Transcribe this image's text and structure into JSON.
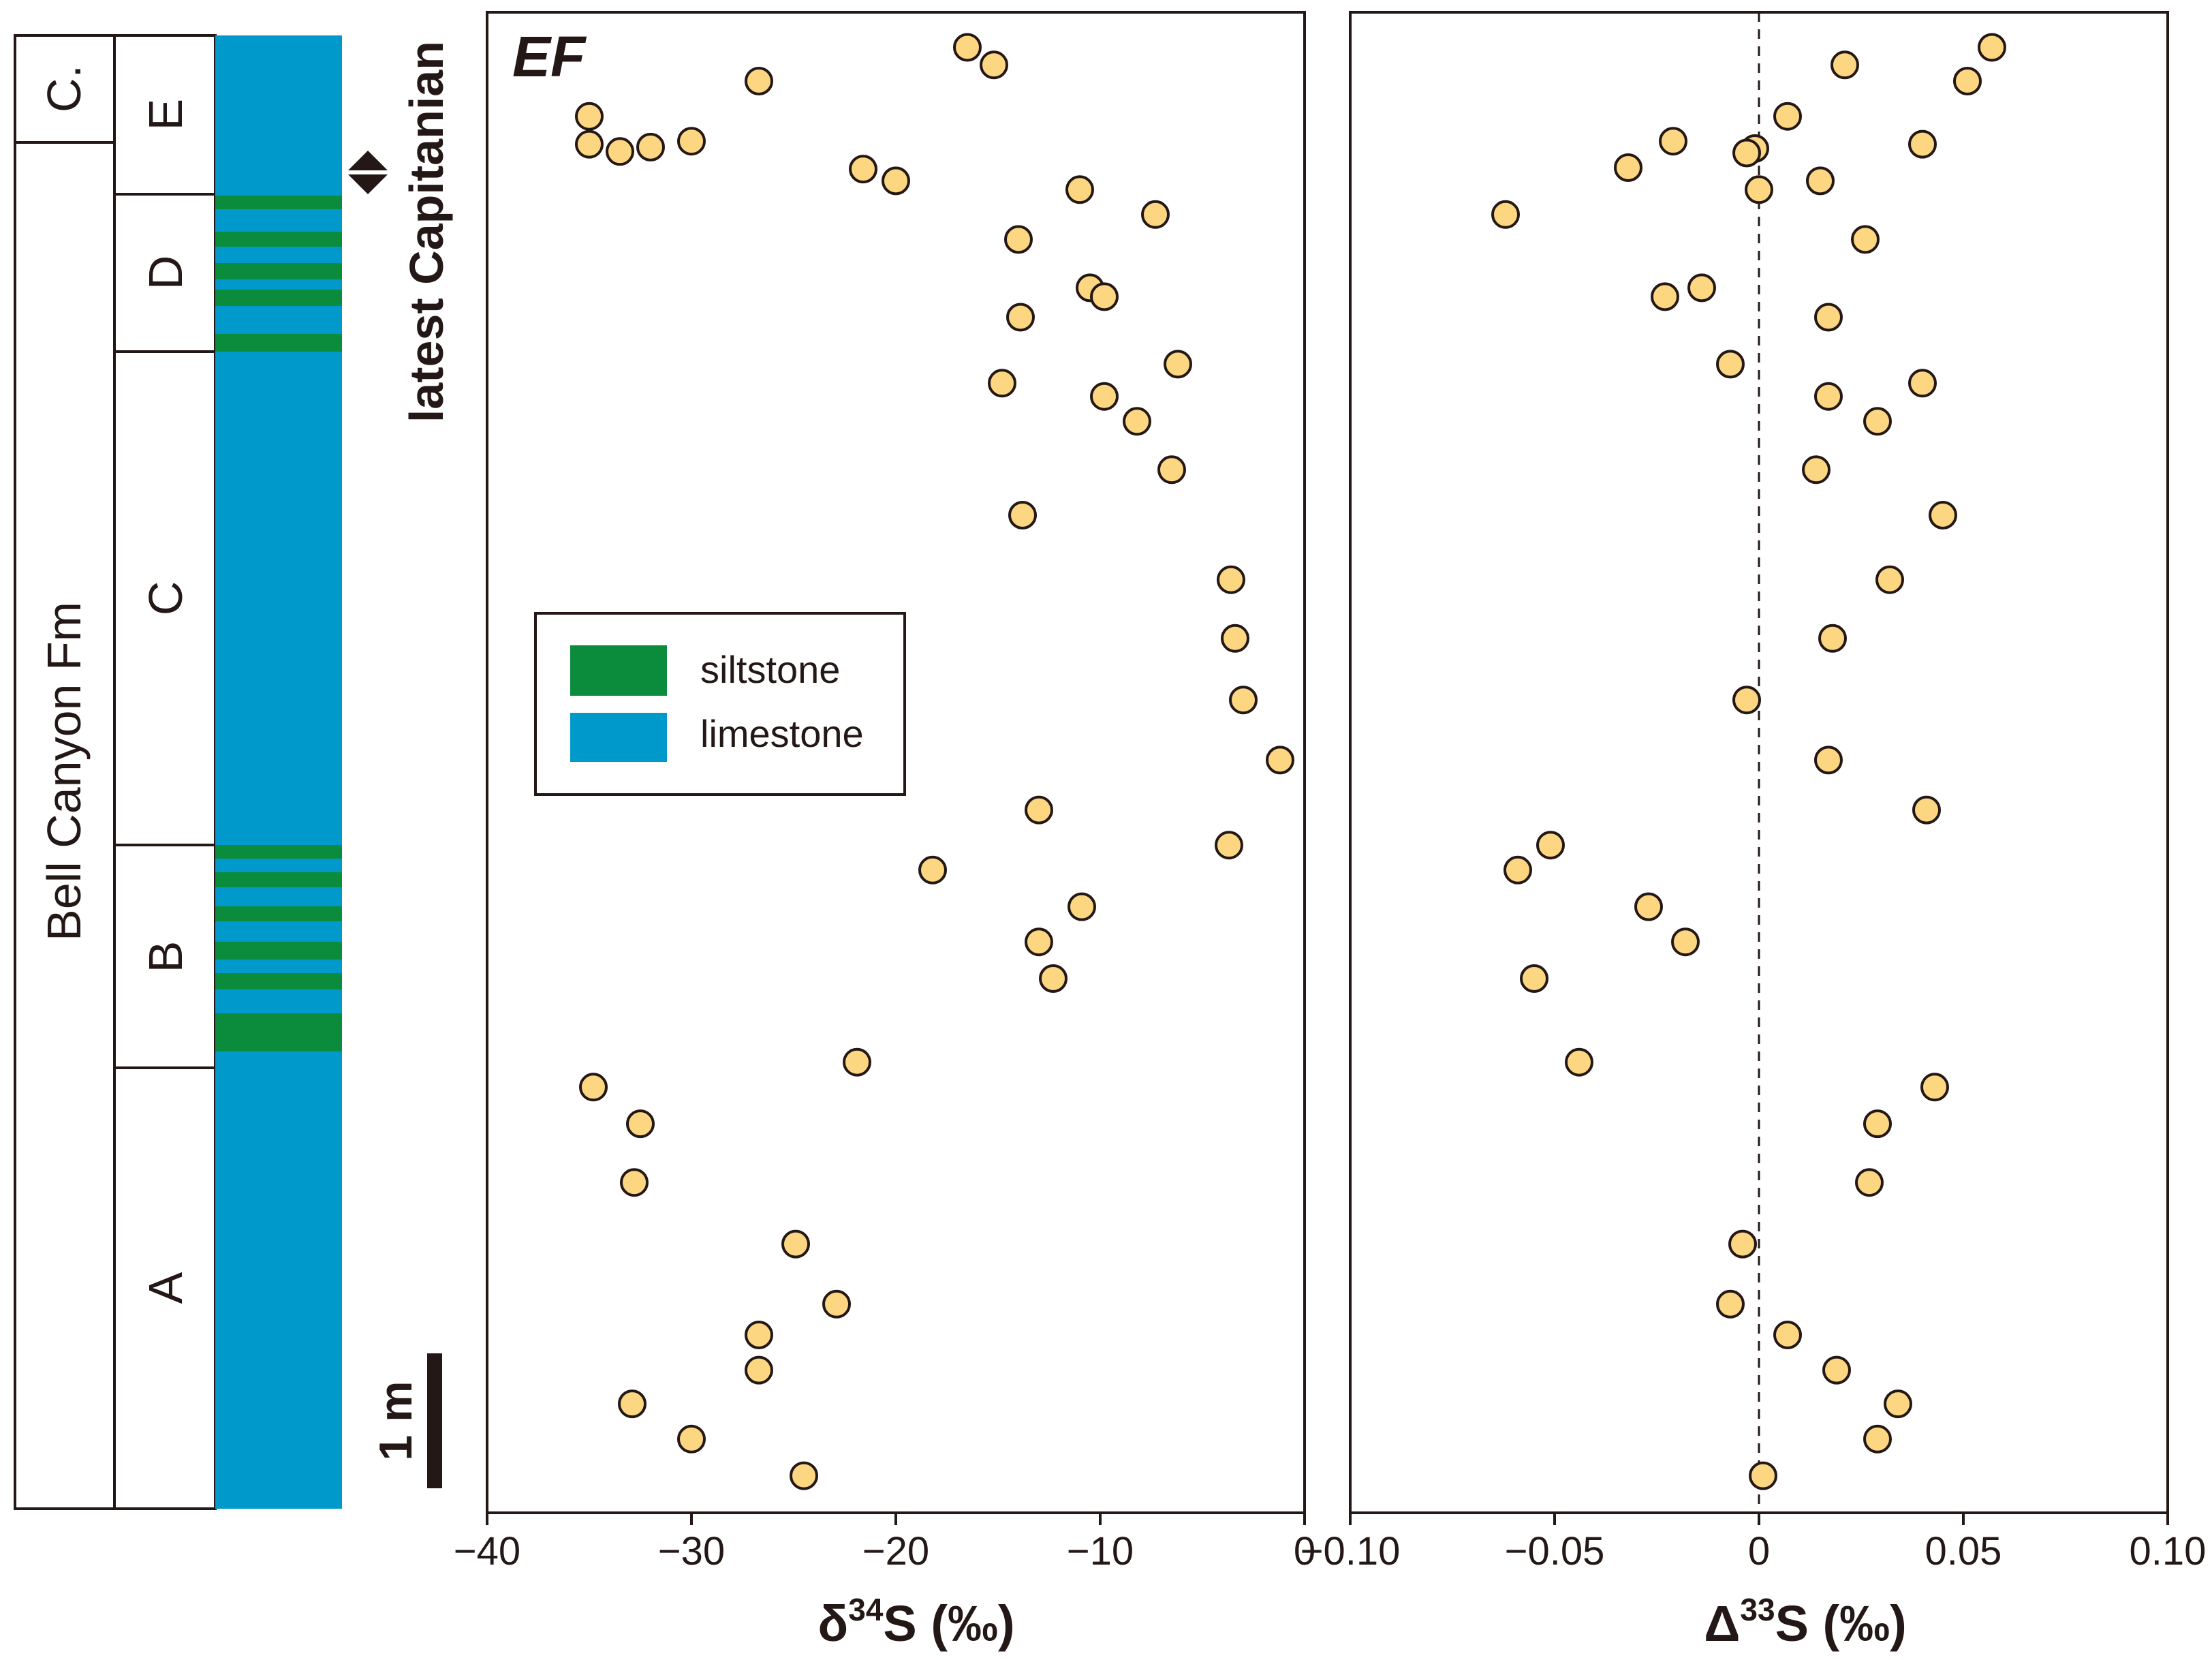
{
  "chart_data": [
    {
      "type": "scatter",
      "panel_tag": "EF",
      "xlabel_parts": {
        "base": "δ",
        "sup": "34",
        "rest": "S (‰)"
      },
      "xlim": [
        -40,
        0
      ],
      "xticks": [
        -40,
        -30,
        -20,
        -10,
        0
      ],
      "xtick_labels": [
        "−40",
        "−30",
        "−20",
        "−10",
        "0"
      ],
      "ylim": [
        0,
        100
      ],
      "points": [
        {
          "x": -16.5,
          "y": 99
        },
        {
          "x": -15.2,
          "y": 97.8
        },
        {
          "x": -26.7,
          "y": 96.7
        },
        {
          "x": -35,
          "y": 94.3
        },
        {
          "x": -35,
          "y": 92.4
        },
        {
          "x": -33.5,
          "y": 91.9
        },
        {
          "x": -32,
          "y": 92.2
        },
        {
          "x": -30,
          "y": 92.6
        },
        {
          "x": -21.6,
          "y": 90.7
        },
        {
          "x": -20,
          "y": 89.9
        },
        {
          "x": -11,
          "y": 89.3
        },
        {
          "x": -7.3,
          "y": 87.6
        },
        {
          "x": -14,
          "y": 85.9
        },
        {
          "x": -10.5,
          "y": 82.6
        },
        {
          "x": -9.8,
          "y": 82
        },
        {
          "x": -13.9,
          "y": 80.6
        },
        {
          "x": -6.2,
          "y": 77.4
        },
        {
          "x": -14.8,
          "y": 76.1
        },
        {
          "x": -9.8,
          "y": 75.2
        },
        {
          "x": -8.2,
          "y": 73.5
        },
        {
          "x": -6.5,
          "y": 70.2
        },
        {
          "x": -13.8,
          "y": 67.1
        },
        {
          "x": -3.6,
          "y": 62.7
        },
        {
          "x": -3.4,
          "y": 58.7
        },
        {
          "x": -3,
          "y": 54.5
        },
        {
          "x": -1.2,
          "y": 50.4
        },
        {
          "x": -13,
          "y": 47
        },
        {
          "x": -3.7,
          "y": 44.6
        },
        {
          "x": -18.2,
          "y": 42.9
        },
        {
          "x": -10.9,
          "y": 40.4
        },
        {
          "x": -13,
          "y": 38
        },
        {
          "x": -12.3,
          "y": 35.5
        },
        {
          "x": -21.9,
          "y": 29.8
        },
        {
          "x": -34.8,
          "y": 28.1
        },
        {
          "x": -32.5,
          "y": 25.6
        },
        {
          "x": -32.8,
          "y": 21.6
        },
        {
          "x": -24.9,
          "y": 17.4
        },
        {
          "x": -22.9,
          "y": 13.3
        },
        {
          "x": -26.7,
          "y": 11.2
        },
        {
          "x": -26.7,
          "y": 8.8
        },
        {
          "x": -32.9,
          "y": 6.5
        },
        {
          "x": -30,
          "y": 4.1
        },
        {
          "x": -24.5,
          "y": 1.6
        }
      ]
    },
    {
      "type": "scatter",
      "xlabel_parts": {
        "base": "Δ",
        "sup": "33",
        "rest": "S (‰)"
      },
      "xlim": [
        -0.1,
        0.1
      ],
      "xticks": [
        -0.1,
        -0.05,
        0,
        0.05,
        0.1
      ],
      "xtick_labels": [
        "−0.10",
        "−0.05",
        "0",
        "0.05",
        "0.10"
      ],
      "ylim": [
        0,
        100
      ],
      "reference_line": {
        "x": 0,
        "style": "dashed"
      },
      "points": [
        {
          "x": 0.057,
          "y": 99
        },
        {
          "x": 0.021,
          "y": 97.8
        },
        {
          "x": 0.051,
          "y": 96.7
        },
        {
          "x": 0.007,
          "y": 94.3
        },
        {
          "x": -0.021,
          "y": 92.6
        },
        {
          "x": 0.04,
          "y": 92.4
        },
        {
          "x": -0.001,
          "y": 92.1
        },
        {
          "x": -0.003,
          "y": 91.8
        },
        {
          "x": -0.032,
          "y": 90.8
        },
        {
          "x": 0.015,
          "y": 89.9
        },
        {
          "x": 0,
          "y": 89.3
        },
        {
          "x": -0.062,
          "y": 87.6
        },
        {
          "x": 0.026,
          "y": 85.9
        },
        {
          "x": -0.014,
          "y": 82.6
        },
        {
          "x": -0.023,
          "y": 82
        },
        {
          "x": 0.017,
          "y": 80.6
        },
        {
          "x": -0.007,
          "y": 77.4
        },
        {
          "x": 0.04,
          "y": 76.1
        },
        {
          "x": 0.017,
          "y": 75.2
        },
        {
          "x": 0.029,
          "y": 73.5
        },
        {
          "x": 0.014,
          "y": 70.2
        },
        {
          "x": 0.045,
          "y": 67.1
        },
        {
          "x": 0.032,
          "y": 62.7
        },
        {
          "x": 0.018,
          "y": 58.7
        },
        {
          "x": -0.003,
          "y": 54.5
        },
        {
          "x": 0.017,
          "y": 50.4
        },
        {
          "x": 0.041,
          "y": 47
        },
        {
          "x": -0.051,
          "y": 44.6
        },
        {
          "x": -0.059,
          "y": 42.9
        },
        {
          "x": -0.027,
          "y": 40.4
        },
        {
          "x": -0.018,
          "y": 38
        },
        {
          "x": -0.055,
          "y": 35.5
        },
        {
          "x": -0.044,
          "y": 29.8
        },
        {
          "x": 0.043,
          "y": 28.1
        },
        {
          "x": 0.029,
          "y": 25.6
        },
        {
          "x": 0.027,
          "y": 21.6
        },
        {
          "x": -0.004,
          "y": 17.4
        },
        {
          "x": -0.007,
          "y": 13.3
        },
        {
          "x": 0.007,
          "y": 11.2
        },
        {
          "x": 0.019,
          "y": 8.8
        },
        {
          "x": 0.034,
          "y": 6.5
        },
        {
          "x": 0.029,
          "y": 4.1
        },
        {
          "x": 0.001,
          "y": 1.6
        }
      ]
    }
  ],
  "stratigraphy": {
    "formation_label": "Bell Canyon Fm",
    "upper_unit_label": "C.",
    "members": [
      "E",
      "D",
      "C",
      "B",
      "A"
    ],
    "legend": [
      {
        "label": "siltstone",
        "color": "#0a8c3c"
      },
      {
        "label": "limestone",
        "color": "#0099cc"
      }
    ],
    "age_label": "latest Capitanian",
    "scale_bar_label": "1 m"
  }
}
